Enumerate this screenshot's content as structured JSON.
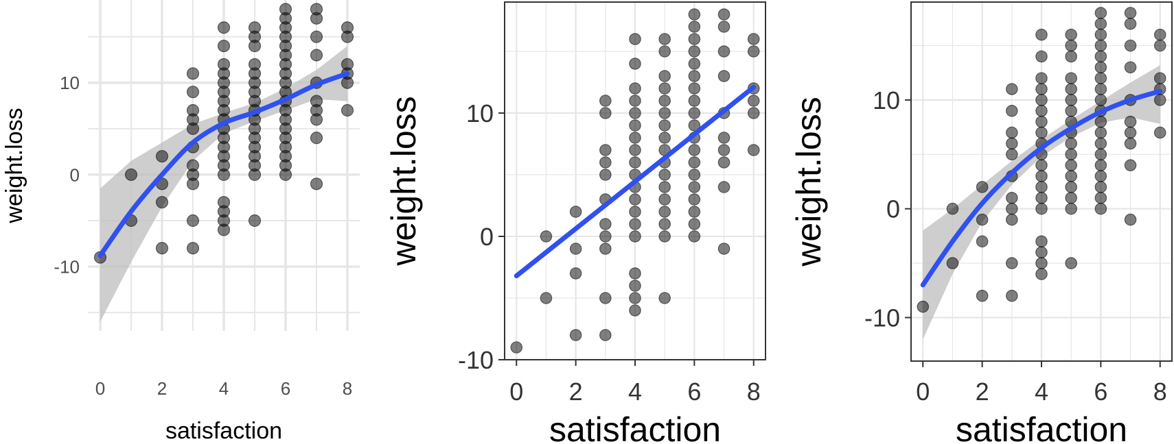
{
  "chart_data": [
    {
      "type": "scatter",
      "xlabel": "satisfaction",
      "ylabel": "weight.loss",
      "xlim": [
        -0.4,
        8.4
      ],
      "ylim": [
        -17,
        19
      ],
      "x_ticks": [
        0,
        2,
        4,
        6,
        8
      ],
      "y_ticks": [
        -10,
        0,
        10
      ],
      "grid": true,
      "panel_border": false,
      "fit": "smooth (loess) with confidence band",
      "fit_curve": {
        "x": [
          0,
          1,
          2,
          3,
          4,
          5,
          6,
          7,
          8
        ],
        "y": [
          -8.8,
          -4,
          0,
          3.5,
          5.6,
          6.8,
          8.2,
          9.8,
          11.0
        ],
        "lower": [
          -16,
          -9.5,
          -3.5,
          1.5,
          4.5,
          5.8,
          7.0,
          8.2,
          8.0
        ],
        "upper": [
          -1.5,
          1.5,
          3.5,
          5.5,
          6.7,
          7.8,
          9.4,
          11.4,
          14.0
        ]
      },
      "points": [
        [
          0,
          -9
        ],
        [
          1,
          0
        ],
        [
          1,
          -5
        ],
        [
          2,
          2
        ],
        [
          2,
          -1
        ],
        [
          2,
          -3
        ],
        [
          2,
          -8
        ],
        [
          3,
          11
        ],
        [
          3,
          9
        ],
        [
          3,
          7
        ],
        [
          3,
          6
        ],
        [
          3,
          5
        ],
        [
          3,
          3
        ],
        [
          3,
          1
        ],
        [
          3,
          0
        ],
        [
          3,
          -1
        ],
        [
          3,
          -5
        ],
        [
          3,
          -8
        ],
        [
          4,
          16
        ],
        [
          4,
          14
        ],
        [
          4,
          12
        ],
        [
          4,
          11
        ],
        [
          4,
          10
        ],
        [
          4,
          9
        ],
        [
          4,
          8
        ],
        [
          4,
          7
        ],
        [
          4,
          6
        ],
        [
          4,
          5
        ],
        [
          4,
          4
        ],
        [
          4,
          3
        ],
        [
          4,
          2
        ],
        [
          4,
          1
        ],
        [
          4,
          0
        ],
        [
          4,
          -3
        ],
        [
          4,
          -4
        ],
        [
          4,
          -5
        ],
        [
          4,
          -6
        ],
        [
          5,
          16
        ],
        [
          5,
          15
        ],
        [
          5,
          14
        ],
        [
          5,
          12
        ],
        [
          5,
          11
        ],
        [
          5,
          10
        ],
        [
          5,
          9
        ],
        [
          5,
          8
        ],
        [
          5,
          7
        ],
        [
          5,
          6
        ],
        [
          5,
          5
        ],
        [
          5,
          4
        ],
        [
          5,
          3
        ],
        [
          5,
          2
        ],
        [
          5,
          1
        ],
        [
          5,
          0
        ],
        [
          5,
          -5
        ],
        [
          6,
          18
        ],
        [
          6,
          17
        ],
        [
          6,
          16
        ],
        [
          6,
          15
        ],
        [
          6,
          14
        ],
        [
          6,
          13
        ],
        [
          6,
          12
        ],
        [
          6,
          11
        ],
        [
          6,
          10
        ],
        [
          6,
          9
        ],
        [
          6,
          8
        ],
        [
          6,
          7
        ],
        [
          6,
          6
        ],
        [
          6,
          5
        ],
        [
          6,
          4
        ],
        [
          6,
          3
        ],
        [
          6,
          2
        ],
        [
          6,
          1
        ],
        [
          6,
          0
        ],
        [
          7,
          18
        ],
        [
          7,
          17
        ],
        [
          7,
          15
        ],
        [
          7,
          13
        ],
        [
          7,
          10
        ],
        [
          7,
          8
        ],
        [
          7,
          7
        ],
        [
          7,
          6
        ],
        [
          7,
          4
        ],
        [
          7,
          -1
        ],
        [
          8,
          16
        ],
        [
          8,
          15
        ],
        [
          8,
          12
        ],
        [
          8,
          11
        ],
        [
          8,
          10
        ],
        [
          8,
          7
        ]
      ]
    },
    {
      "type": "scatter",
      "xlabel": "satisfaction",
      "ylabel": "weight.loss",
      "xlim": [
        -0.4,
        8.4
      ],
      "ylim": [
        -10,
        19
      ],
      "x_ticks": [
        0,
        2,
        4,
        6,
        8
      ],
      "y_ticks": [
        -10,
        0,
        10
      ],
      "grid": true,
      "panel_border": true,
      "fit": "linear",
      "fit_curve": {
        "x": [
          0,
          8
        ],
        "y": [
          -3.2,
          12.1
        ]
      },
      "points": [
        [
          0,
          -9
        ],
        [
          1,
          0
        ],
        [
          1,
          -5
        ],
        [
          2,
          2
        ],
        [
          2,
          -1
        ],
        [
          2,
          -3
        ],
        [
          2,
          -8
        ],
        [
          3,
          11
        ],
        [
          3,
          10
        ],
        [
          3,
          7
        ],
        [
          3,
          6
        ],
        [
          3,
          5
        ],
        [
          3,
          3
        ],
        [
          3,
          1
        ],
        [
          3,
          0
        ],
        [
          3,
          -1
        ],
        [
          3,
          -5
        ],
        [
          3,
          -8
        ],
        [
          4,
          16
        ],
        [
          4,
          14
        ],
        [
          4,
          12
        ],
        [
          4,
          11
        ],
        [
          4,
          10
        ],
        [
          4,
          9
        ],
        [
          4,
          8
        ],
        [
          4,
          7
        ],
        [
          4,
          6
        ],
        [
          4,
          5
        ],
        [
          4,
          4
        ],
        [
          4,
          3
        ],
        [
          4,
          2
        ],
        [
          4,
          1
        ],
        [
          4,
          0
        ],
        [
          4,
          -3
        ],
        [
          4,
          -4
        ],
        [
          4,
          -5
        ],
        [
          4,
          -6
        ],
        [
          5,
          16
        ],
        [
          5,
          15
        ],
        [
          5,
          13
        ],
        [
          5,
          12
        ],
        [
          5,
          11
        ],
        [
          5,
          10
        ],
        [
          5,
          9
        ],
        [
          5,
          8
        ],
        [
          5,
          7
        ],
        [
          5,
          6
        ],
        [
          5,
          5
        ],
        [
          5,
          4
        ],
        [
          5,
          3
        ],
        [
          5,
          2
        ],
        [
          5,
          1
        ],
        [
          5,
          0
        ],
        [
          5,
          -5
        ],
        [
          6,
          18
        ],
        [
          6,
          17
        ],
        [
          6,
          16
        ],
        [
          6,
          15
        ],
        [
          6,
          14
        ],
        [
          6,
          13
        ],
        [
          6,
          12
        ],
        [
          6,
          11
        ],
        [
          6,
          10
        ],
        [
          6,
          9
        ],
        [
          6,
          8
        ],
        [
          6,
          7
        ],
        [
          6,
          6
        ],
        [
          6,
          5
        ],
        [
          6,
          4
        ],
        [
          6,
          3
        ],
        [
          6,
          2
        ],
        [
          6,
          1
        ],
        [
          6,
          0
        ],
        [
          7,
          18
        ],
        [
          7,
          17
        ],
        [
          7,
          15
        ],
        [
          7,
          13
        ],
        [
          7,
          10
        ],
        [
          7,
          8
        ],
        [
          7,
          7
        ],
        [
          7,
          6
        ],
        [
          7,
          4
        ],
        [
          7,
          -1
        ],
        [
          8,
          16
        ],
        [
          8,
          15
        ],
        [
          8,
          12
        ],
        [
          8,
          11
        ],
        [
          8,
          10
        ],
        [
          8,
          7
        ]
      ]
    },
    {
      "type": "scatter",
      "xlabel": "satisfaction",
      "ylabel": "weight.loss",
      "xlim": [
        -0.4,
        8.4
      ],
      "ylim": [
        -14,
        19
      ],
      "x_ticks": [
        0,
        2,
        4,
        6,
        8
      ],
      "y_ticks": [
        -10,
        0,
        10
      ],
      "grid": true,
      "panel_border": true,
      "fit": "quadratic with confidence band",
      "fit_curve": {
        "x": [
          0,
          1,
          2,
          3,
          4,
          5,
          6,
          7,
          8
        ],
        "y": [
          -7.0,
          -3.0,
          0.5,
          3.3,
          5.6,
          7.4,
          8.9,
          10.0,
          10.8
        ],
        "lower": [
          -12.0,
          -6.0,
          -1.2,
          2.2,
          4.8,
          6.6,
          7.9,
          8.4,
          7.8
        ],
        "upper": [
          -2.0,
          0.0,
          2.2,
          4.4,
          6.4,
          8.2,
          9.9,
          11.6,
          13.2
        ]
      },
      "points": [
        [
          0,
          -9
        ],
        [
          1,
          0
        ],
        [
          1,
          -5
        ],
        [
          2,
          2
        ],
        [
          2,
          -1
        ],
        [
          2,
          -3
        ],
        [
          2,
          -8
        ],
        [
          3,
          11
        ],
        [
          3,
          9
        ],
        [
          3,
          7
        ],
        [
          3,
          6
        ],
        [
          3,
          5
        ],
        [
          3,
          3
        ],
        [
          3,
          1
        ],
        [
          3,
          0
        ],
        [
          3,
          -1
        ],
        [
          3,
          -5
        ],
        [
          3,
          -8
        ],
        [
          4,
          16
        ],
        [
          4,
          14
        ],
        [
          4,
          12
        ],
        [
          4,
          11
        ],
        [
          4,
          10
        ],
        [
          4,
          9
        ],
        [
          4,
          8
        ],
        [
          4,
          7
        ],
        [
          4,
          6
        ],
        [
          4,
          5
        ],
        [
          4,
          4
        ],
        [
          4,
          3
        ],
        [
          4,
          2
        ],
        [
          4,
          1
        ],
        [
          4,
          0
        ],
        [
          4,
          -3
        ],
        [
          4,
          -4
        ],
        [
          4,
          -5
        ],
        [
          4,
          -6
        ],
        [
          5,
          16
        ],
        [
          5,
          15
        ],
        [
          5,
          14
        ],
        [
          5,
          12
        ],
        [
          5,
          11
        ],
        [
          5,
          10
        ],
        [
          5,
          9
        ],
        [
          5,
          8
        ],
        [
          5,
          7
        ],
        [
          5,
          6
        ],
        [
          5,
          5
        ],
        [
          5,
          4
        ],
        [
          5,
          3
        ],
        [
          5,
          2
        ],
        [
          5,
          1
        ],
        [
          5,
          0
        ],
        [
          5,
          -5
        ],
        [
          6,
          18
        ],
        [
          6,
          17
        ],
        [
          6,
          16
        ],
        [
          6,
          15
        ],
        [
          6,
          14
        ],
        [
          6,
          13
        ],
        [
          6,
          12
        ],
        [
          6,
          11
        ],
        [
          6,
          10
        ],
        [
          6,
          9
        ],
        [
          6,
          8
        ],
        [
          6,
          7
        ],
        [
          6,
          6
        ],
        [
          6,
          5
        ],
        [
          6,
          4
        ],
        [
          6,
          3
        ],
        [
          6,
          2
        ],
        [
          6,
          1
        ],
        [
          6,
          0
        ],
        [
          7,
          18
        ],
        [
          7,
          17
        ],
        [
          7,
          15
        ],
        [
          7,
          13
        ],
        [
          7,
          10
        ],
        [
          7,
          8
        ],
        [
          7,
          7
        ],
        [
          7,
          6
        ],
        [
          7,
          4
        ],
        [
          7,
          -1
        ],
        [
          8,
          16
        ],
        [
          8,
          15
        ],
        [
          8,
          12
        ],
        [
          8,
          11
        ],
        [
          8,
          10
        ],
        [
          8,
          7
        ]
      ]
    }
  ],
  "colors": {
    "fit_line": "#3050f0",
    "ribbon": "#bdbdbd",
    "point": "#000000",
    "grid": "#e6e6e6",
    "axis_text": "#4d4d4d",
    "title_text": "#000000"
  }
}
